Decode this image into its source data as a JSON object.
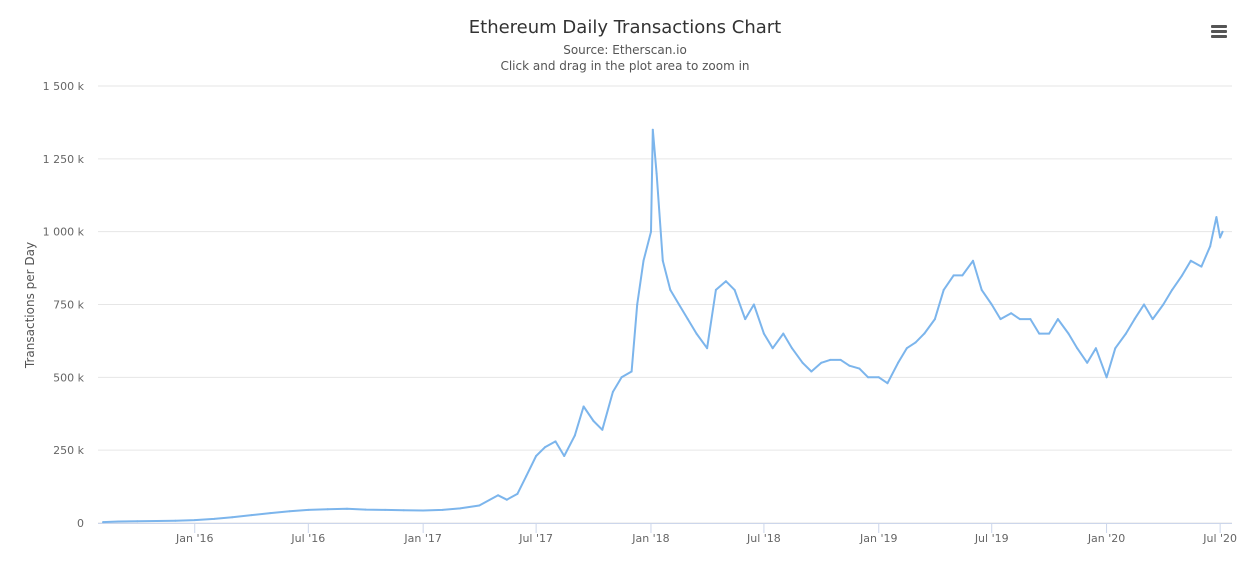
{
  "chart_data": {
    "type": "line",
    "title": "Ethereum Daily Transactions Chart",
    "subtitle": "Source: Etherscan.io",
    "hint": "Click and drag in the plot area to zoom in",
    "ylabel": "Transactions per Day",
    "xlabel": "",
    "ylim": [
      0,
      1500000
    ],
    "y_ticks": [
      {
        "value": 0,
        "label": "0"
      },
      {
        "value": 250000,
        "label": "250 k"
      },
      {
        "value": 500000,
        "label": "500 k"
      },
      {
        "value": 750000,
        "label": "750 k"
      },
      {
        "value": 1000000,
        "label": "1 000 k"
      },
      {
        "value": 1250000,
        "label": "1 250 k"
      },
      {
        "value": 1500000,
        "label": "1 500 k"
      }
    ],
    "xlim": [
      "2015-07-30",
      "2020-07-20"
    ],
    "x_ticks": [
      {
        "date": "2016-01-01",
        "label": "Jan '16"
      },
      {
        "date": "2016-07-01",
        "label": "Jul '16"
      },
      {
        "date": "2017-01-01",
        "label": "Jan '17"
      },
      {
        "date": "2017-07-01",
        "label": "Jul '17"
      },
      {
        "date": "2018-01-01",
        "label": "Jan '18"
      },
      {
        "date": "2018-07-01",
        "label": "Jul '18"
      },
      {
        "date": "2019-01-01",
        "label": "Jan '19"
      },
      {
        "date": "2019-07-01",
        "label": "Jul '19"
      },
      {
        "date": "2020-01-01",
        "label": "Jan '20"
      },
      {
        "date": "2020-07-01",
        "label": "Jul '20"
      }
    ],
    "grid": true,
    "legend": false,
    "series": [
      {
        "color": "#7cb5ec",
        "x": [
          "2015-08-07",
          "2015-09-01",
          "2015-10-01",
          "2015-11-01",
          "2015-12-01",
          "2016-01-01",
          "2016-02-01",
          "2016-03-01",
          "2016-04-01",
          "2016-05-01",
          "2016-06-01",
          "2016-07-01",
          "2016-08-01",
          "2016-09-01",
          "2016-10-01",
          "2016-11-01",
          "2016-12-01",
          "2017-01-01",
          "2017-02-01",
          "2017-03-01",
          "2017-04-01",
          "2017-05-01",
          "2017-05-15",
          "2017-06-01",
          "2017-06-15",
          "2017-07-01",
          "2017-07-15",
          "2017-08-01",
          "2017-08-15",
          "2017-09-01",
          "2017-09-15",
          "2017-10-01",
          "2017-10-15",
          "2017-11-01",
          "2017-11-15",
          "2017-12-01",
          "2017-12-10",
          "2017-12-20",
          "2018-01-01",
          "2018-01-04",
          "2018-01-10",
          "2018-01-20",
          "2018-02-01",
          "2018-02-15",
          "2018-03-01",
          "2018-03-15",
          "2018-04-01",
          "2018-04-15",
          "2018-05-01",
          "2018-05-15",
          "2018-06-01",
          "2018-06-15",
          "2018-07-01",
          "2018-07-15",
          "2018-08-01",
          "2018-08-15",
          "2018-09-01",
          "2018-09-15",
          "2018-10-01",
          "2018-10-15",
          "2018-11-01",
          "2018-11-15",
          "2018-12-01",
          "2018-12-15",
          "2019-01-01",
          "2019-01-15",
          "2019-02-01",
          "2019-02-15",
          "2019-03-01",
          "2019-03-15",
          "2019-04-01",
          "2019-04-15",
          "2019-05-01",
          "2019-05-15",
          "2019-06-01",
          "2019-06-15",
          "2019-07-01",
          "2019-07-15",
          "2019-08-01",
          "2019-08-15",
          "2019-09-01",
          "2019-09-15",
          "2019-10-01",
          "2019-10-15",
          "2019-11-01",
          "2019-11-15",
          "2019-12-01",
          "2019-12-15",
          "2020-01-01",
          "2020-01-15",
          "2020-02-01",
          "2020-02-15",
          "2020-03-01",
          "2020-03-15",
          "2020-04-01",
          "2020-04-15",
          "2020-05-01",
          "2020-05-15",
          "2020-06-01",
          "2020-06-15",
          "2020-06-25",
          "2020-07-01",
          "2020-07-05"
        ],
        "values": [
          3000,
          5000,
          6000,
          7000,
          8000,
          10000,
          14000,
          20000,
          27000,
          34000,
          40000,
          45000,
          47000,
          49000,
          46000,
          45000,
          44000,
          43000,
          45000,
          50000,
          60000,
          95000,
          80000,
          100000,
          160000,
          230000,
          260000,
          280000,
          230000,
          300000,
          400000,
          350000,
          320000,
          450000,
          500000,
          520000,
          750000,
          900000,
          1000000,
          1350000,
          1200000,
          900000,
          800000,
          750000,
          700000,
          650000,
          600000,
          800000,
          830000,
          800000,
          700000,
          750000,
          650000,
          600000,
          650000,
          600000,
          550000,
          520000,
          550000,
          560000,
          560000,
          540000,
          530000,
          500000,
          500000,
          480000,
          550000,
          600000,
          620000,
          650000,
          700000,
          800000,
          850000,
          850000,
          900000,
          800000,
          750000,
          700000,
          720000,
          700000,
          700000,
          650000,
          650000,
          700000,
          650000,
          600000,
          550000,
          600000,
          500000,
          600000,
          650000,
          700000,
          750000,
          700000,
          750000,
          800000,
          850000,
          900000,
          880000,
          950000,
          1050000,
          980000,
          1000000
        ]
      }
    ]
  }
}
